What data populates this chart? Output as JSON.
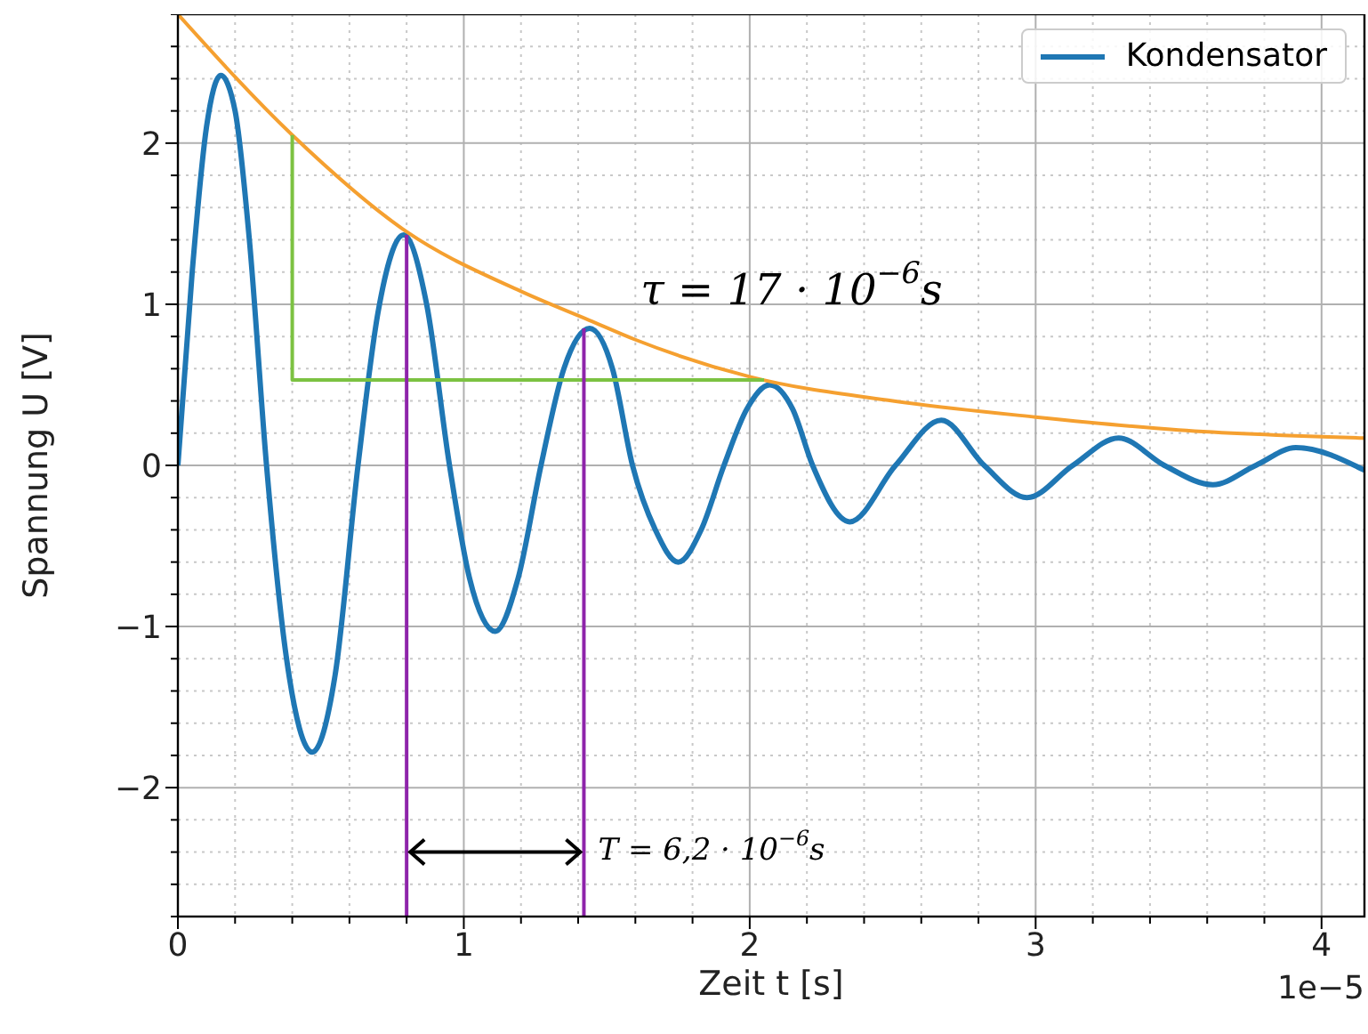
{
  "chart_data": {
    "type": "line",
    "xlabel": "Zeit t [s]",
    "ylabel": "Spannung U [V]",
    "xlim": [
      0,
      4.15
    ],
    "xticks": [
      0,
      1,
      2,
      3,
      4
    ],
    "ylim": [
      -2.8,
      2.8
    ],
    "yticks": [
      -2,
      -1,
      0,
      1,
      2
    ],
    "grid": true,
    "legend": "top right",
    "marker": "none",
    "line_style": "solid",
    "series": [
      {
        "name": "Kondensator",
        "color": "#1f77b4",
        "x": [
          0,
          0.05,
          0.1,
          0.15,
          0.2,
          0.25,
          0.31,
          0.38,
          0.47,
          0.55,
          0.63,
          0.7,
          0.79,
          0.87,
          0.95,
          1.02,
          1.11,
          1.19,
          1.27,
          1.35,
          1.44,
          1.52,
          1.59,
          1.67,
          1.75,
          1.83,
          1.91,
          1.99,
          2.07,
          2.15,
          2.22,
          2.35,
          2.51,
          2.67,
          2.82,
          2.97,
          3.13,
          3.29,
          3.45,
          3.62,
          3.77,
          3.91,
          4.15
        ],
        "values": [
          0,
          1.2,
          2.1,
          2.42,
          2.2,
          1.4,
          0,
          -1.2,
          -1.78,
          -1.3,
          0,
          0.95,
          1.43,
          1.0,
          0,
          -0.7,
          -1.03,
          -0.7,
          0,
          0.6,
          0.85,
          0.6,
          0,
          -0.4,
          -0.6,
          -0.4,
          0,
          0.35,
          0.5,
          0.35,
          0,
          -0.35,
          0,
          0.28,
          0,
          -0.2,
          0,
          0.17,
          0,
          -0.12,
          0,
          0.11,
          -0.03
        ]
      },
      {
        "color": "#f5a030",
        "x": [
          0,
          0.4,
          0.8,
          1.2,
          1.44,
          1.6,
          2.0,
          2.5,
          3.0,
          3.5,
          4.15
        ],
        "values": [
          2.8,
          2.05,
          1.45,
          1.08,
          0.9,
          0.78,
          0.55,
          0.4,
          0.3,
          0.22,
          0.17
        ]
      },
      {
        "color": "#7cc242",
        "x": [
          0.4,
          0.4,
          2.05
        ],
        "values": [
          2.05,
          0.53,
          0.53
        ]
      },
      {
        "color": "#8e24aa",
        "x": [
          0.8,
          0.8
        ],
        "values": [
          -2.8,
          1.43
        ]
      },
      {
        "color": "#8e24aa",
        "x": [
          1.42,
          1.42
        ],
        "values": [
          -2.8,
          0.85
        ]
      }
    ],
    "annotations": [
      "τ = 17 · 10$^{−6}$s",
      {
        "text": "T = 6,2 · 10$^{−6}$s",
        "x": 1.42,
        "y": -2.4
      },
      "1e−5"
    ]
  }
}
